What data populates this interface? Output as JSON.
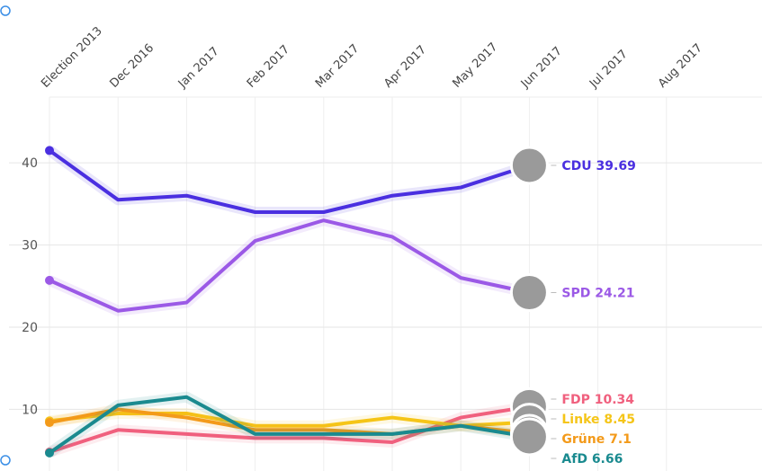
{
  "chart_data": {
    "type": "line",
    "categories": [
      "Election 2013",
      "Dec 2016",
      "Jan 2017",
      "Feb 2017",
      "Mar 2017",
      "Apr 2017",
      "May 2017",
      "Jun 2017",
      "Jul 2017",
      "Aug 2017"
    ],
    "ylim": [
      2.5,
      48
    ],
    "yticks": [
      10,
      20,
      30,
      40
    ],
    "grid": true,
    "series": [
      {
        "name": "CDU",
        "color": "#4a2fe0",
        "values": [
          41.5,
          35.5,
          36,
          34,
          34,
          36,
          37,
          39.69,
          null,
          null
        ]
      },
      {
        "name": "SPD",
        "color": "#9b59e6",
        "values": [
          25.7,
          22,
          23,
          30.5,
          33,
          31,
          26,
          24.21,
          null,
          null
        ]
      },
      {
        "name": "FDP",
        "color": "#f0607e",
        "values": [
          4.8,
          7.5,
          7,
          6.5,
          6.5,
          6,
          9,
          10.34,
          null,
          null
        ]
      },
      {
        "name": "Linke",
        "color": "#f5c518",
        "values": [
          8.6,
          9.5,
          9.5,
          8,
          8,
          9,
          8,
          8.45,
          null,
          null
        ]
      },
      {
        "name": "Grüne",
        "color": "#f39a1a",
        "values": [
          8.4,
          10,
          9,
          7.5,
          7.5,
          7,
          8,
          7.1,
          null,
          null
        ]
      },
      {
        "name": "AfD",
        "color": "#1a8a8f",
        "values": [
          4.7,
          10.5,
          11.5,
          7,
          7,
          7,
          8,
          6.66,
          null,
          null
        ]
      }
    ]
  }
}
